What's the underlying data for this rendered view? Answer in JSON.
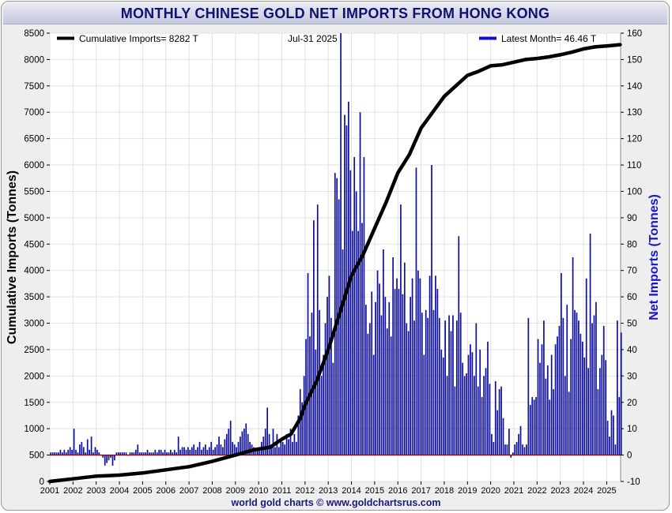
{
  "title": "MONTHLY CHINESE GOLD NET IMPORTS FROM HONG KONG",
  "footer": "world gold charts © www.goldchartsrus.com",
  "legend": {
    "left_label": "Cumulative Imports= 8282 T",
    "date_label": "Jul-31  2025",
    "right_label": "Latest Month= 46.46 T"
  },
  "colors": {
    "cumulative": "#000000",
    "monthly": "#1010a0",
    "zero_line": "#8b0000",
    "right_axis_label": "#1414c8",
    "title": "#10106e"
  },
  "chart_data": {
    "type": "bar+line",
    "title": "MONTHLY CHINESE GOLD NET IMPORTS FROM HONG KONG",
    "y_left": {
      "label": "Cumulative Imports (Tonnes)",
      "range": [
        0,
        8500
      ],
      "ticks": [
        0,
        500,
        1000,
        1500,
        2000,
        2500,
        3000,
        3500,
        4000,
        4500,
        5000,
        5500,
        6000,
        6500,
        7000,
        7500,
        8000,
        8500
      ]
    },
    "y_right": {
      "label": "Net Imports (Tonnes)",
      "range": [
        -10,
        160
      ],
      "ticks": [
        -10,
        0,
        10,
        20,
        30,
        40,
        50,
        60,
        70,
        80,
        90,
        100,
        110,
        120,
        130,
        140,
        150,
        160
      ]
    },
    "x_axis": {
      "range": [
        2001,
        2025.6
      ],
      "ticks": [
        2001,
        2002,
        2003,
        2004,
        2005,
        2006,
        2007,
        2008,
        2009,
        2010,
        2011,
        2012,
        2013,
        2014,
        2015,
        2016,
        2017,
        2018,
        2019,
        2020,
        2021,
        2022,
        2023,
        2024,
        2025
      ]
    },
    "grid": true,
    "cumulative_series": {
      "name": "Cumulative Imports",
      "axis": "left",
      "x": [
        2001,
        2002,
        2003,
        2004,
        2005,
        2006,
        2007,
        2008,
        2009,
        2009.8,
        2010.5,
        2011,
        2011.4,
        2011.6,
        2011.8,
        2012,
        2012.5,
        2013,
        2013.5,
        2014,
        2014.5,
        2015,
        2015.5,
        2016,
        2016.5,
        2017,
        2017.5,
        2018,
        2018.5,
        2019,
        2019.5,
        2020,
        2020.5,
        2021,
        2021.5,
        2022,
        2022.5,
        2023,
        2023.5,
        2024,
        2024.5,
        2025,
        2025.58
      ],
      "y": [
        0,
        50,
        100,
        120,
        160,
        220,
        280,
        380,
        500,
        600,
        650,
        800,
        900,
        1050,
        1200,
        1450,
        1900,
        2500,
        3200,
        3900,
        4300,
        4800,
        5300,
        5850,
        6200,
        6700,
        7000,
        7300,
        7500,
        7700,
        7780,
        7880,
        7900,
        7950,
        8000,
        8020,
        8050,
        8090,
        8140,
        8200,
        8240,
        8258,
        8282
      ]
    },
    "monthly_series": {
      "name": "Net Imports",
      "axis": "right",
      "yearly_values": {
        "2001": [
          1,
          1,
          1,
          1,
          1,
          2,
          1,
          2,
          1,
          2,
          3,
          2
        ],
        "2002": [
          10,
          2,
          1,
          4,
          5,
          3,
          1,
          6,
          2,
          7,
          1,
          3
        ],
        "2003": [
          2,
          1,
          0,
          -1,
          -4,
          -3,
          -2,
          -1,
          -4,
          -2,
          1,
          1
        ],
        "2004": [
          1,
          1,
          1,
          1,
          0,
          1,
          1,
          1,
          2,
          4,
          1,
          1
        ],
        "2005": [
          1,
          1,
          2,
          1,
          1,
          1,
          2,
          1,
          2,
          2,
          1,
          2
        ],
        "2006": [
          1,
          1,
          2,
          1,
          2,
          1,
          7,
          2,
          3,
          3,
          2,
          3
        ],
        "2007": [
          2,
          3,
          4,
          2,
          3,
          5,
          2,
          3,
          4,
          2,
          3,
          5
        ],
        "2008": [
          2,
          3,
          4,
          7,
          4,
          3,
          6,
          8,
          10,
          13,
          5,
          4
        ],
        "2009": [
          3,
          5,
          7,
          9,
          10,
          12,
          8,
          5,
          4,
          3,
          2,
          2
        ],
        "2010": [
          3,
          5,
          7,
          10,
          18,
          8,
          4,
          10,
          3,
          8,
          3,
          6
        ],
        "2011": [
          5,
          4,
          8,
          6,
          10,
          5,
          8,
          5,
          15,
          25,
          20,
          30
        ],
        "2012": [
          44,
          69,
          45,
          54,
          89,
          40,
          95,
          55,
          30,
          38,
          50,
          60
        ],
        "2013": [
          68,
          52,
          35,
          107,
          105,
          97,
          160,
          78,
          129,
          125,
          134,
          108
        ],
        "2014": [
          85,
          113,
          100,
          85,
          130,
          88,
          113,
          57,
          46,
          50,
          62,
          38
        ],
        "2015": [
          58,
          70,
          65,
          53,
          78,
          60,
          48,
          58,
          45,
          75,
          63,
          67
        ],
        "2016": [
          63,
          95,
          61,
          73,
          50,
          47,
          60,
          67,
          51,
          109,
          70,
          67
        ],
        "2017": [
          54,
          38,
          55,
          52,
          68,
          110,
          55,
          68,
          63,
          52,
          40,
          37
        ],
        "2018": [
          51,
          30,
          53,
          47,
          53,
          26,
          51,
          83,
          54,
          35,
          30,
          31
        ],
        "2019": [
          38,
          42,
          39,
          30,
          50,
          26,
          40,
          22,
          30,
          33,
          43,
          27
        ],
        "2020": [
          8,
          5,
          28,
          17,
          25,
          26,
          14,
          4,
          4,
          10,
          -1,
          1
        ],
        "2021": [
          4,
          5,
          8,
          11,
          4,
          3,
          4,
          52,
          19,
          22,
          21,
          22
        ],
        "2022": [
          44,
          35,
          42,
          51,
          29,
          34,
          21,
          38,
          25,
          42,
          45,
          49
        ],
        "2023": [
          69,
          52,
          30,
          57,
          24,
          44,
          75,
          55,
          54,
          51,
          46,
          43
        ],
        "2024": [
          37,
          67,
          33,
          84,
          50,
          53,
          58,
          25,
          33,
          38,
          49,
          36
        ],
        "2025": [
          13,
          7,
          17,
          15,
          4,
          51,
          22,
          46.46
        ]
      },
      "latest_value": 46.46
    }
  }
}
